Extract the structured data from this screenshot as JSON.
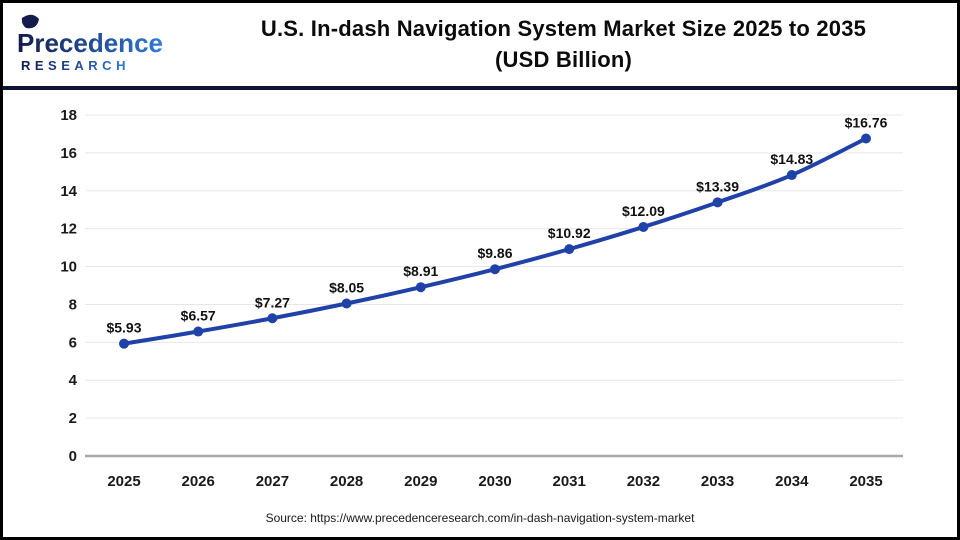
{
  "header": {
    "logo": {
      "brand": "Precedence",
      "sub": "RESEARCH",
      "dark_color": "#141b4d",
      "light_color": "#2e7cd6"
    },
    "title_line1": "U.S. In-dash Navigation System Market Size 2025 to 2035",
    "title_line2": "(USD Billion)"
  },
  "chart_data": {
    "type": "line",
    "title": "U.S. In-dash Navigation System Market Size 2025 to 2035 (USD Billion)",
    "categories": [
      "2025",
      "2026",
      "2027",
      "2028",
      "2029",
      "2030",
      "2031",
      "2032",
      "2033",
      "2034",
      "2035"
    ],
    "values": [
      5.93,
      6.57,
      7.27,
      8.05,
      8.91,
      9.86,
      10.92,
      12.09,
      13.39,
      14.83,
      16.76
    ],
    "point_labels": [
      "$5.93",
      "$6.57",
      "$7.27",
      "$8.05",
      "$8.91",
      "$9.86",
      "$10.92",
      "$12.09",
      "$13.39",
      "$14.83",
      "$16.76"
    ],
    "xlabel": "",
    "ylabel": "",
    "ylim": [
      0,
      18
    ],
    "yticks": [
      0,
      2,
      4,
      6,
      8,
      10,
      12,
      14,
      16,
      18
    ],
    "grid": true,
    "legend": "none",
    "line_color": "#2042a8",
    "marker": "circle",
    "gridline_color": "#e7e7e7",
    "axis_line_color": "#a8a8a8",
    "tick_label_color": "#1a1a1a"
  },
  "footer": {
    "source": "Source: https://www.precedenceresearch.com/in-dash-navigation-system-market"
  }
}
